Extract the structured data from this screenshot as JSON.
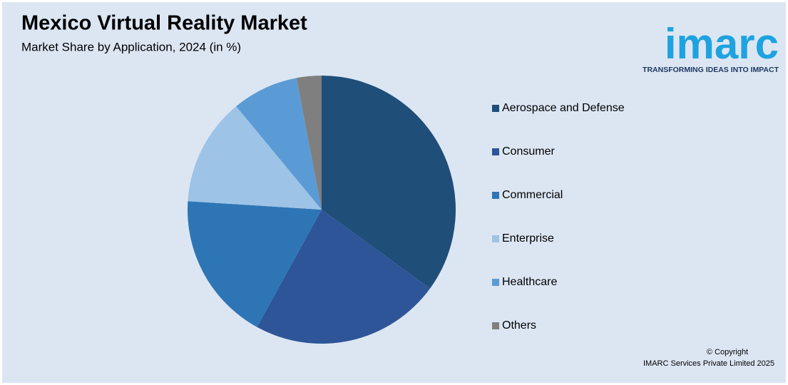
{
  "chart_data": {
    "type": "pie",
    "title": "Mexico Virtual Reality Market",
    "subtitle": "Market Share by Application, 2024 (in %)",
    "categories": [
      "Aerospace and Defense",
      "Consumer",
      "Commercial",
      "Enterprise",
      "Healthcare",
      "Others"
    ],
    "values": [
      35,
      23,
      18,
      13,
      8,
      3
    ],
    "colors": [
      "#1f4e79",
      "#2e5597",
      "#2e75b6",
      "#9dc3e6",
      "#5b9bd5",
      "#7f7f7f"
    ],
    "legend": "right"
  },
  "logo": {
    "name": "imarc",
    "tagline": "TRANSFORMING IDEAS INTO IMPACT"
  },
  "footer": {
    "copyright": "© Copyright",
    "owner": "IMARC Services Private Limited 2025"
  }
}
